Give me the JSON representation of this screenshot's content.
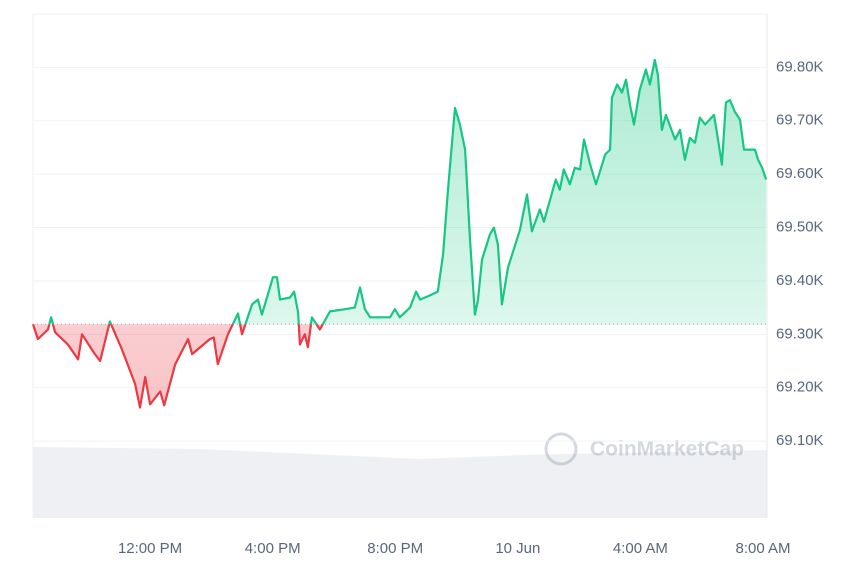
{
  "chart_data": {
    "type": "line",
    "watermark": "CoinMarketCap",
    "baseline": 69319,
    "up_color": "#16c784",
    "down_color": "#ea3943",
    "xlim": [
      8.18,
      32.13
    ],
    "xticks": [
      {
        "value": 12,
        "label": "12:00 PM"
      },
      {
        "value": 16,
        "label": "4:00 PM"
      },
      {
        "value": 20,
        "label": "8:00 PM"
      },
      {
        "value": 24,
        "label": "10 Jun"
      },
      {
        "value": 28,
        "label": "4:00 AM"
      },
      {
        "value": 32,
        "label": "8:00 AM"
      }
    ],
    "ylim": [
      68956,
      69900
    ],
    "yticks": [
      {
        "value": 69100,
        "label": "69.10K"
      },
      {
        "value": 69200,
        "label": "69.20K"
      },
      {
        "value": 69300,
        "label": "69.30K"
      },
      {
        "value": 69400,
        "label": "69.40K"
      },
      {
        "value": 69500,
        "label": "69.50K"
      },
      {
        "value": 69600,
        "label": "69.60K"
      },
      {
        "value": 69700,
        "label": "69.70K"
      },
      {
        "value": 69800,
        "label": "69.80K"
      }
    ],
    "grid": true,
    "x": [
      8.18,
      8.34,
      8.67,
      8.77,
      8.9,
      9.32,
      9.65,
      9.78,
      10.2,
      10.37,
      10.69,
      11.08,
      11.51,
      11.67,
      11.84,
      12.0,
      12.33,
      12.46,
      12.82,
      13.24,
      13.37,
      13.95,
      14.08,
      14.21,
      14.54,
      14.87,
      15.0,
      15.33,
      15.52,
      15.65,
      16.01,
      16.14,
      16.24,
      16.57,
      16.7,
      16.83,
      16.89,
      17.05,
      17.15,
      17.28,
      17.54,
      17.87,
      18.36,
      18.68,
      18.85,
      19.01,
      19.18,
      19.83,
      19.99,
      20.15,
      20.48,
      20.68,
      20.81,
      21.13,
      21.39,
      21.56,
      21.72,
      21.95,
      22.11,
      22.28,
      22.44,
      22.6,
      22.7,
      22.83,
      23.09,
      23.22,
      23.35,
      23.48,
      23.68,
      24.07,
      24.3,
      24.46,
      24.72,
      24.85,
      25.24,
      25.37,
      25.5,
      25.7,
      25.86,
      26.03,
      26.16,
      26.36,
      26.55,
      26.85,
      27.01,
      27.07,
      27.24,
      27.4,
      27.53,
      27.66,
      27.79,
      27.98,
      28.18,
      28.31,
      28.47,
      28.57,
      28.7,
      28.83,
      29.13,
      29.29,
      29.45,
      29.61,
      29.78,
      29.94,
      30.11,
      30.4,
      30.53,
      30.66,
      30.79,
      30.92,
      31.08,
      31.25,
      31.38,
      31.74,
      31.84,
      31.97,
      32.1
    ],
    "values": [
      69319,
      69291,
      69309,
      69332,
      69304,
      69281,
      69253,
      69300,
      69263,
      69250,
      69324,
      69272,
      69207,
      69163,
      69220,
      69169,
      69193,
      69167,
      69244,
      69291,
      69263,
      69291,
      69294,
      69244,
      69300,
      69339,
      69300,
      69356,
      69365,
      69337,
      69407,
      69407,
      69365,
      69369,
      69380,
      69341,
      69281,
      69300,
      69276,
      69332,
      69309,
      69343,
      69347,
      69350,
      69388,
      69347,
      69332,
      69332,
      69347,
      69332,
      69350,
      69380,
      69365,
      69373,
      69380,
      69450,
      69571,
      69724,
      69693,
      69646,
      69478,
      69337,
      69365,
      69440,
      69487,
      69500,
      69468,
      69356,
      69425,
      69496,
      69562,
      69493,
      69534,
      69511,
      69590,
      69571,
      69609,
      69581,
      69612,
      69609,
      69665,
      69618,
      69581,
      69637,
      69646,
      69743,
      69768,
      69753,
      69777,
      69730,
      69693,
      69758,
      69796,
      69768,
      69814,
      69786,
      69683,
      69711,
      69665,
      69683,
      69627,
      69668,
      69659,
      69706,
      69693,
      69711,
      69665,
      69618,
      69734,
      69739,
      69717,
      69702,
      69646,
      69646,
      69627,
      69612,
      69590
    ]
  }
}
